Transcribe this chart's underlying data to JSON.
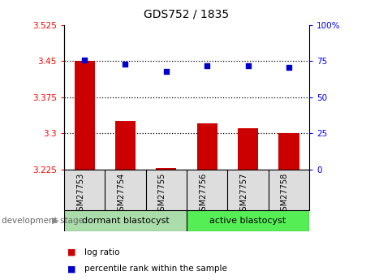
{
  "title": "GDS752 / 1835",
  "samples": [
    "GSM27753",
    "GSM27754",
    "GSM27755",
    "GSM27756",
    "GSM27757",
    "GSM27758"
  ],
  "log_ratio": [
    3.45,
    3.325,
    3.228,
    3.32,
    3.31,
    3.3
  ],
  "percentile_rank": [
    76,
    73,
    68,
    72,
    72,
    71
  ],
  "ylim_left": [
    3.225,
    3.525
  ],
  "ylim_right": [
    0,
    100
  ],
  "yticks_left": [
    3.225,
    3.3,
    3.375,
    3.45,
    3.525
  ],
  "yticks_right": [
    0,
    25,
    50,
    75,
    100
  ],
  "ytick_labels_left": [
    "3.225",
    "3.3",
    "3.375",
    "3.45",
    "3.525"
  ],
  "ytick_labels_right": [
    "0",
    "25",
    "50",
    "75",
    "100%"
  ],
  "hlines": [
    3.3,
    3.375,
    3.45
  ],
  "bar_color": "#cc0000",
  "point_color": "#0000cc",
  "bar_baseline": 3.225,
  "group1_label": "dormant blastocyst",
  "group2_label": "active blastocyst",
  "group1_color": "#aaddaa",
  "group2_color": "#55ee55",
  "xlabel_group": "development stage",
  "legend_bar": "log ratio",
  "legend_point": "percentile rank within the sample",
  "sample_bg_color": "#dddddd",
  "plot_bg": "#ffffff"
}
